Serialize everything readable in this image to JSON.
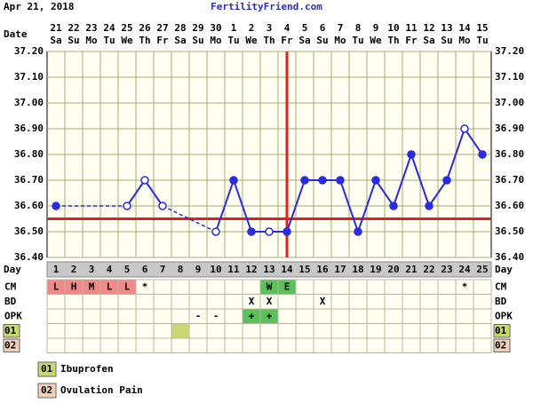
{
  "header": {
    "date": "Apr 21, 2018",
    "site": "FertilityFriend.com",
    "date_label": "Date",
    "day_label": "Day"
  },
  "chart_data": {
    "type": "line",
    "dates": [
      "21",
      "22",
      "23",
      "24",
      "25",
      "26",
      "27",
      "28",
      "29",
      "30",
      "1",
      "2",
      "3",
      "4",
      "5",
      "6",
      "7",
      "8",
      "9",
      "10",
      "11",
      "12",
      "13",
      "14",
      "15"
    ],
    "weekdays": [
      "Sa",
      "Su",
      "Mo",
      "Tu",
      "We",
      "Th",
      "Fr",
      "Sa",
      "Su",
      "Mo",
      "Tu",
      "We",
      "Th",
      "Fr",
      "Sa",
      "Su",
      "Mo",
      "Tu",
      "We",
      "Th",
      "Fr",
      "Sa",
      "Su",
      "Mo",
      "Tu"
    ],
    "days": [
      1,
      2,
      3,
      4,
      5,
      6,
      7,
      8,
      9,
      10,
      11,
      12,
      13,
      14,
      15,
      16,
      17,
      18,
      19,
      20,
      21,
      22,
      23,
      24,
      25
    ],
    "values": [
      36.6,
      null,
      null,
      null,
      36.6,
      36.7,
      36.6,
      null,
      null,
      36.5,
      36.7,
      36.5,
      36.5,
      36.5,
      36.7,
      36.7,
      36.7,
      36.5,
      36.7,
      36.6,
      36.8,
      36.6,
      36.7,
      36.9,
      36.8
    ],
    "open_markers": [
      false,
      false,
      false,
      false,
      true,
      true,
      true,
      false,
      false,
      true,
      false,
      false,
      true,
      false,
      false,
      false,
      false,
      false,
      false,
      false,
      false,
      false,
      false,
      true,
      false
    ],
    "color": "#2a2ae0",
    "ylim": [
      36.4,
      37.2
    ],
    "yticks": [
      {
        "value": 36.4,
        "label": "36.40"
      },
      {
        "value": 36.5,
        "label": "36.50"
      },
      {
        "value": 36.6,
        "label": "36.60"
      },
      {
        "value": 36.7,
        "label": "36.70"
      },
      {
        "value": 36.8,
        "label": "36.80"
      },
      {
        "value": 36.9,
        "label": "36.90"
      },
      {
        "value": 37.0,
        "label": "37.00"
      },
      {
        "value": 37.1,
        "label": "37.10"
      },
      {
        "value": 37.2,
        "label": "37.20"
      }
    ],
    "grid": true,
    "coverline": 36.55,
    "ovulation_day": 14,
    "marker_color": "#e02020",
    "rows": [
      {
        "label": "CM",
        "cells": [
          "L",
          "H",
          "M",
          "L",
          "L",
          "*",
          null,
          null,
          null,
          null,
          null,
          null,
          "W",
          "E",
          null,
          null,
          null,
          null,
          null,
          null,
          null,
          null,
          null,
          "*",
          null
        ],
        "colors": [
          "#f08a8a",
          "#f08a8a",
          "#f08a8a",
          "#f08a8a",
          "#f08a8a",
          null,
          null,
          null,
          null,
          null,
          null,
          null,
          "#5cc05c",
          "#5cc05c",
          null,
          null,
          null,
          null,
          null,
          null,
          null,
          null,
          null,
          null,
          null
        ]
      },
      {
        "label": "BD",
        "cells": [
          null,
          null,
          null,
          null,
          null,
          null,
          null,
          null,
          null,
          null,
          null,
          "X",
          "X",
          null,
          null,
          "X",
          null,
          null,
          null,
          null,
          null,
          null,
          null,
          null,
          null
        ],
        "colors": [
          null,
          null,
          null,
          null,
          null,
          null,
          null,
          null,
          null,
          null,
          null,
          null,
          null,
          null,
          null,
          null,
          null,
          null,
          null,
          null,
          null,
          null,
          null,
          null,
          null
        ]
      },
      {
        "label": "OPK",
        "cells": [
          null,
          null,
          null,
          null,
          null,
          null,
          null,
          null,
          "-",
          "-",
          null,
          "+",
          "+",
          null,
          null,
          null,
          null,
          null,
          null,
          null,
          null,
          null,
          null,
          null,
          null
        ],
        "colors": [
          null,
          null,
          null,
          null,
          null,
          null,
          null,
          null,
          null,
          null,
          null,
          "#5cc05c",
          "#5cc05c",
          null,
          null,
          null,
          null,
          null,
          null,
          null,
          null,
          null,
          null,
          null,
          null
        ]
      },
      {
        "label": "01",
        "label_color": "#c8d870",
        "cells": [
          null,
          null,
          null,
          null,
          null,
          null,
          null,
          null,
          null,
          null,
          null,
          null,
          null,
          null,
          null,
          null,
          null,
          null,
          null,
          null,
          null,
          null,
          null,
          null,
          null
        ],
        "colors": [
          null,
          null,
          null,
          null,
          null,
          null,
          null,
          "#c8d870",
          null,
          null,
          null,
          null,
          null,
          null,
          null,
          null,
          null,
          null,
          null,
          null,
          null,
          null,
          null,
          null,
          null
        ]
      },
      {
        "label": "02",
        "label_color": "#f4d0b8",
        "cells": [
          null,
          null,
          null,
          null,
          null,
          null,
          null,
          null,
          null,
          null,
          null,
          null,
          null,
          null,
          null,
          null,
          null,
          null,
          null,
          null,
          null,
          null,
          null,
          null,
          null
        ],
        "colors": [
          null,
          null,
          null,
          null,
          null,
          null,
          null,
          null,
          null,
          null,
          null,
          null,
          null,
          null,
          null,
          null,
          null,
          null,
          null,
          null,
          null,
          null,
          null,
          null,
          null
        ]
      }
    ],
    "legend": [
      {
        "code": "01",
        "label": "Ibuprofen",
        "color": "#c8d870"
      },
      {
        "code": "02",
        "label": "Ovulation Pain",
        "color": "#f4d0b8"
      }
    ]
  }
}
